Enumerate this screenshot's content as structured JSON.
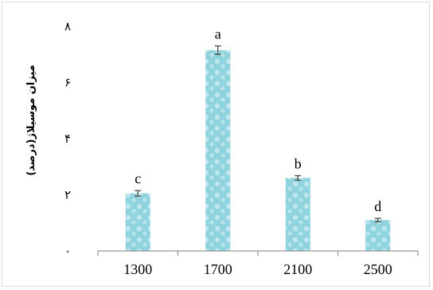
{
  "chart_data": {
    "type": "bar",
    "title": "",
    "xlabel": "",
    "ylabel": "میزان موسیلاژ(درصد)",
    "categories": [
      "1300",
      "1700",
      "2100",
      "2500"
    ],
    "values": [
      2.05,
      7.15,
      2.6,
      1.1
    ],
    "errors": [
      0.1,
      0.15,
      0.08,
      0.06
    ],
    "significance_letters": [
      "c",
      "a",
      "b",
      "d"
    ],
    "ylim": [
      0,
      8
    ],
    "y_ticks": [
      0,
      2,
      4,
      6,
      8
    ],
    "y_tick_labels": [
      "۰",
      "۲",
      "۴",
      "۶",
      "۸"
    ],
    "grid": false,
    "legend": "none",
    "bar_fill": "#8fd3de",
    "bar_fill_light": "#c9ecf1",
    "error_bar_color": "#404040",
    "axis_color": "#808080"
  }
}
